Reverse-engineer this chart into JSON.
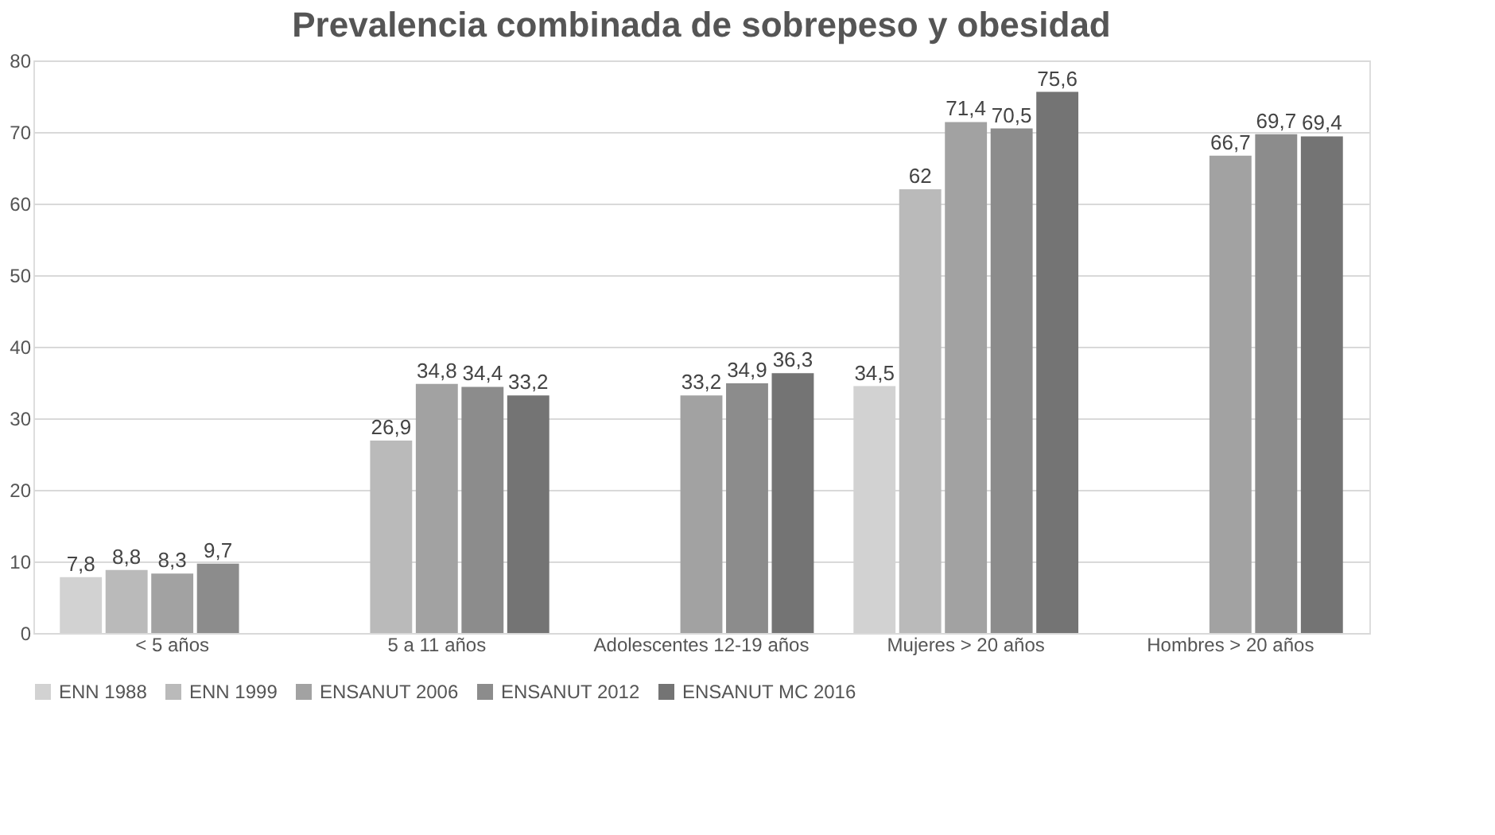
{
  "chart_data": {
    "type": "bar",
    "title": "Prevalencia combinada de sobrepeso y obesidad",
    "categories": [
      "< 5 años",
      "5 a 11 años",
      "Adolescentes 12-19 años",
      "Mujeres > 20 años",
      "Hombres > 20 años"
    ],
    "series": [
      {
        "name": "ENN 1988",
        "color": "#d2d2d2",
        "values": [
          7.8,
          null,
          null,
          34.5,
          null
        ],
        "value_labels": [
          "7,8",
          null,
          null,
          "34,5",
          null
        ]
      },
      {
        "name": "ENN 1999",
        "color": "#bababa",
        "values": [
          8.8,
          26.9,
          null,
          62,
          null
        ],
        "value_labels": [
          "8,8",
          "26,9",
          null,
          "62",
          null
        ]
      },
      {
        "name": "ENSANUT 2006",
        "color": "#a2a2a2",
        "values": [
          8.3,
          34.8,
          33.2,
          71.4,
          66.7
        ],
        "value_labels": [
          "8,3",
          "34,8",
          "33,2",
          "71,4",
          "66,7"
        ]
      },
      {
        "name": "ENSANUT 2012",
        "color": "#8c8c8c",
        "values": [
          9.7,
          34.4,
          34.9,
          70.5,
          69.7
        ],
        "value_labels": [
          "9,7",
          "34,4",
          "34,9",
          "70,5",
          "69,7"
        ]
      },
      {
        "name": "ENSANUT MC 2016",
        "color": "#747474",
        "values": [
          null,
          33.2,
          36.3,
          75.6,
          69.4
        ],
        "value_labels": [
          null,
          "33,2",
          "36,3",
          "75,6",
          "69,4"
        ]
      }
    ],
    "ylim": [
      0,
      80
    ],
    "yticks": [
      0,
      10,
      20,
      30,
      40,
      50,
      60,
      70,
      80
    ],
    "grid": "y",
    "legend": "bottom"
  }
}
